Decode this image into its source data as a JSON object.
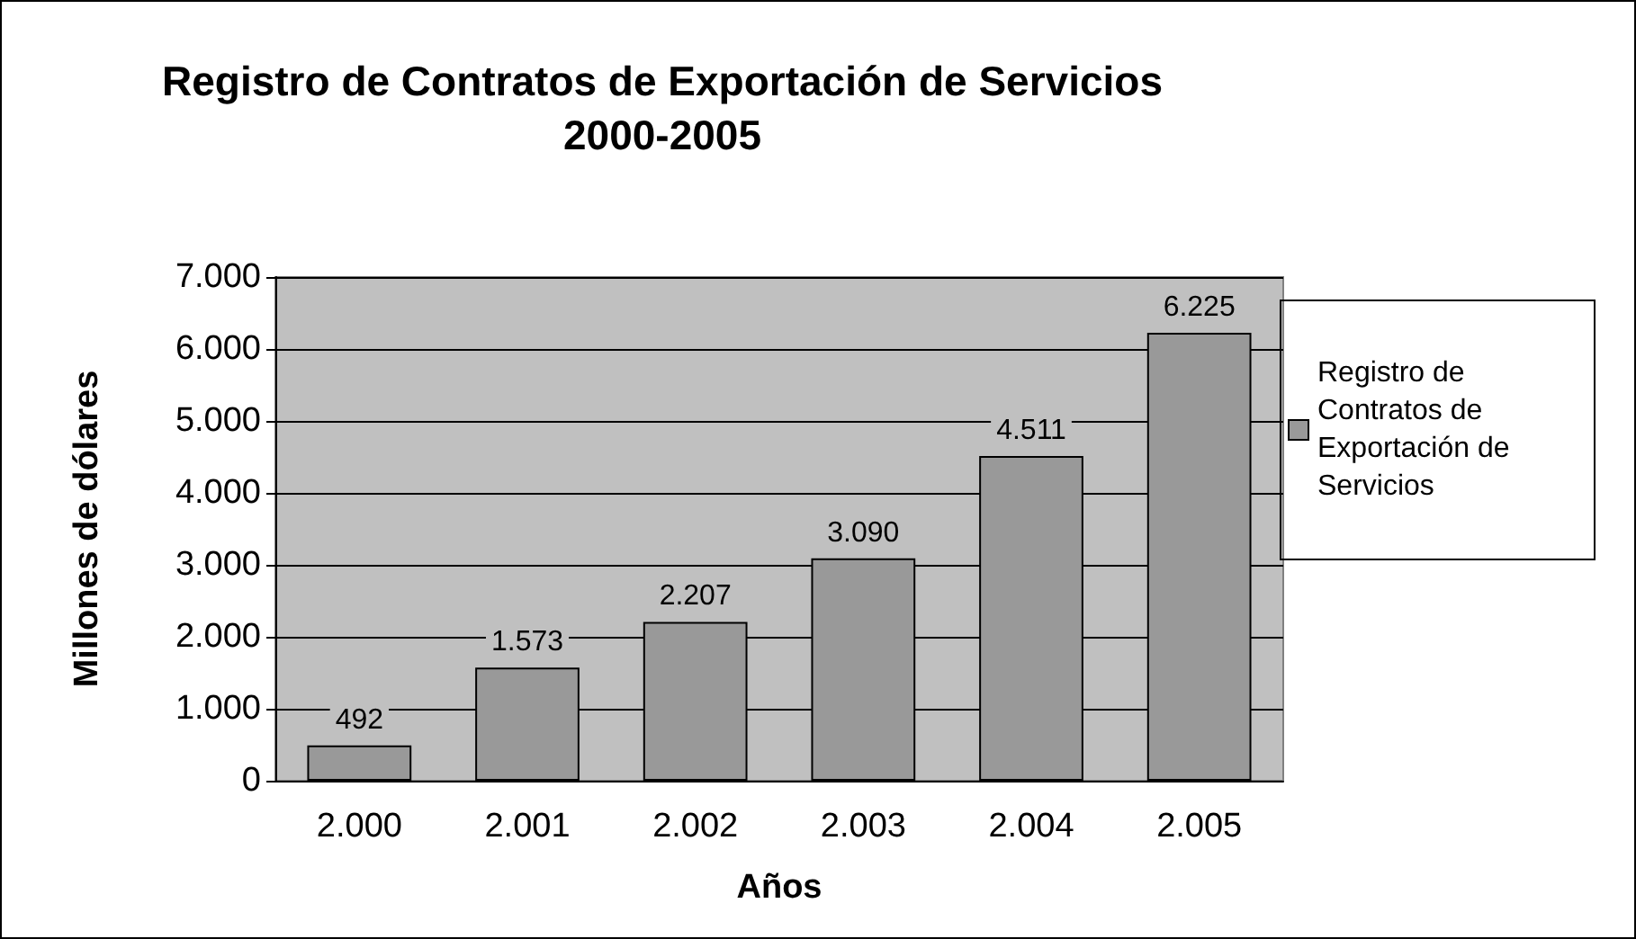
{
  "chart_data": {
    "type": "bar",
    "title": "Registro de Contratos de Exportación de Servicios\n2000-2005",
    "xlabel": "Años",
    "ylabel": "Millones de dólares",
    "categories": [
      "2.000",
      "2.001",
      "2.002",
      "2.003",
      "2.004",
      "2.005"
    ],
    "series": [
      {
        "name": "Registro de Contratos de Exportación de Servicios",
        "color": "#999999",
        "values": [
          492,
          1573,
          2207,
          3090,
          4511,
          6225
        ],
        "value_labels": [
          "492",
          "1.573",
          "2.207",
          "3.090",
          "4.511",
          "6.225"
        ]
      }
    ],
    "ylim": [
      0,
      7000
    ],
    "yticks": [
      {
        "value": 0,
        "label": "0"
      },
      {
        "value": 1000,
        "label": "1.000"
      },
      {
        "value": 2000,
        "label": "2.000"
      },
      {
        "value": 3000,
        "label": "3.000"
      },
      {
        "value": 4000,
        "label": "4.000"
      },
      {
        "value": 5000,
        "label": "5.000"
      },
      {
        "value": 6000,
        "label": "6.000"
      },
      {
        "value": 7000,
        "label": "7.000"
      }
    ],
    "grid": "y",
    "legend": "right"
  }
}
